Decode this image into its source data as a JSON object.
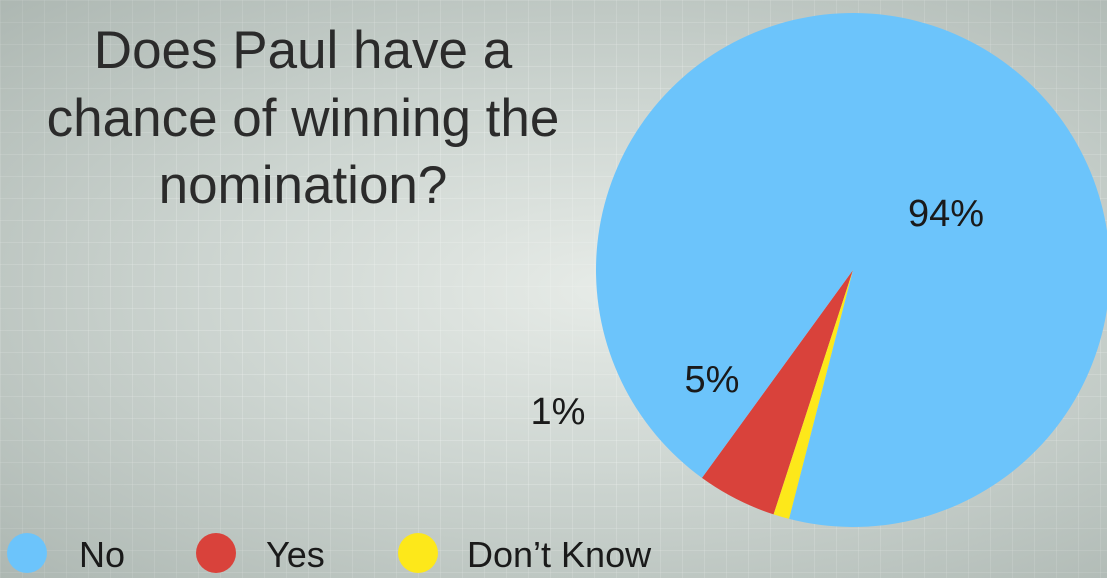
{
  "chart_data": {
    "type": "pie",
    "title": [
      "Does Paul have a",
      "chance of winning the",
      "nomination?"
    ],
    "categories": [
      "No",
      "Yes",
      "Don’t Know"
    ],
    "values": [
      94,
      5,
      1
    ],
    "labels": [
      "94%",
      "5%",
      "1%"
    ],
    "colors": [
      "#6cc4fb",
      "#d9423b",
      "#fde81a"
    ],
    "legend_position": "bottom-left"
  }
}
